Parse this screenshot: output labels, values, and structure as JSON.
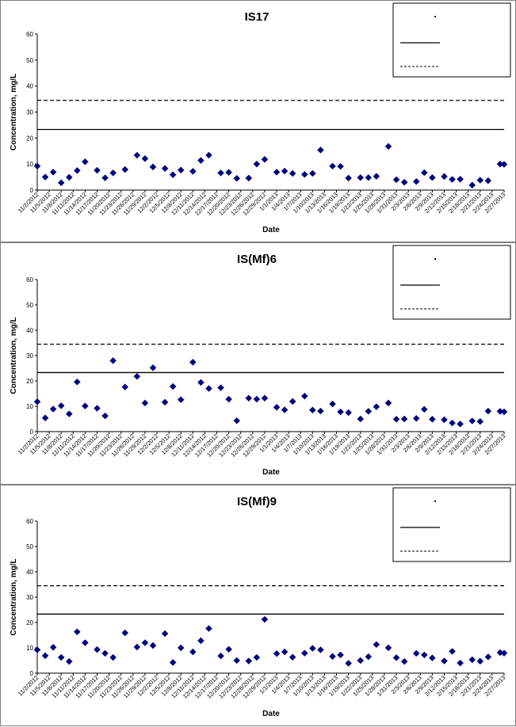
{
  "chart_data": [
    {
      "type": "scatter",
      "title": "IS17",
      "xlabel": "Date",
      "ylabel": "Concentration, mg/L",
      "ylim": [
        0,
        60
      ],
      "yticks": [
        0,
        10,
        20,
        30,
        40,
        50,
        60
      ],
      "xticks": [
        "11/2/2012",
        "11/5/2012",
        "11/8/2012",
        "11/11/2012",
        "11/14/2012",
        "11/17/2012",
        "11/20/2012",
        "11/23/2012",
        "11/26/2012",
        "11/29/2012",
        "12/2/2012",
        "12/5/2012",
        "12/8/2012",
        "12/11/2012",
        "12/14/2012",
        "12/17/2012",
        "12/20/2012",
        "12/23/2012",
        "12/26/2012",
        "12/29/2012",
        "1/1/2013",
        "1/4/2013",
        "1/7/2013",
        "1/10/2013",
        "1/13/2013",
        "1/16/2013",
        "1/19/2013",
        "1/22/2013",
        "1/25/2013",
        "1/28/2013",
        "1/31/2013",
        "2/3/2013",
        "2/6/2013",
        "2/9/2013",
        "2/12/2013",
        "2/15/2013",
        "2/18/2013",
        "2/21/2013",
        "2/24/2013",
        "2/27/2013"
      ],
      "xrange": [
        "11/2/2012",
        "2/27/2013"
      ],
      "reference_lines": [
        23.3,
        34.5
      ],
      "legend_position": "top-right",
      "series": [
        {
          "x": [
            "11/2/2012",
            "11/4/2012",
            "11/6/2012",
            "11/8/2012",
            "11/10/2012",
            "11/12/2012",
            "11/14/2012",
            "11/17/2012",
            "11/19/2012",
            "11/21/2012",
            "11/24/2012",
            "11/27/2012",
            "11/29/2012",
            "12/1/2012",
            "12/4/2012",
            "12/6/2012",
            "12/8/2012",
            "12/11/2012",
            "12/13/2012",
            "12/15/2012",
            "12/18/2012",
            "12/20/2012",
            "12/22/2012",
            "12/25/2012",
            "12/27/2012",
            "12/29/2012",
            "1/1/2013",
            "1/3/2013",
            "1/5/2013",
            "1/8/2013",
            "1/10/2013",
            "1/12/2013",
            "1/15/2013",
            "1/17/2013",
            "1/19/2013",
            "1/22/2013",
            "1/24/2013",
            "1/26/2013",
            "1/29/2013",
            "1/31/2013",
            "2/2/2013",
            "2/5/2013",
            "2/7/2013",
            "2/9/2013",
            "2/12/2013",
            "2/14/2013",
            "2/16/2013",
            "2/19/2013",
            "2/21/2013",
            "2/23/2013",
            "2/26/2013",
            "2/27/2013"
          ],
          "y": [
            9.2,
            5.0,
            6.9,
            2.8,
            4.9,
            7.5,
            10.9,
            7.6,
            4.7,
            6.6,
            7.9,
            13.4,
            12.1,
            8.9,
            8.3,
            5.9,
            7.7,
            7.2,
            11.4,
            13.4,
            6.6,
            6.8,
            4.5,
            4.6,
            10.0,
            11.8,
            6.9,
            7.3,
            6.4,
            6.0,
            6.4,
            15.4,
            9.2,
            9.1,
            4.6,
            4.8,
            4.8,
            5.3,
            16.8,
            4.0,
            3.0,
            3.3,
            6.7,
            4.8,
            5.2,
            4.1,
            4.2,
            1.9,
            3.8,
            3.6,
            10.0,
            9.9
          ]
        }
      ]
    },
    {
      "type": "scatter",
      "title": "IS(Mf)6",
      "xlabel": "Date",
      "ylabel": "Concentration, mg/L",
      "ylim": [
        0,
        60
      ],
      "yticks": [
        0,
        10,
        20,
        30,
        40,
        50,
        60
      ],
      "xticks": [
        "11/2/2012",
        "11/5/2012",
        "11/8/2012",
        "11/11/2012",
        "11/14/2012",
        "11/17/2012",
        "11/20/2012",
        "11/23/2012",
        "11/26/2012",
        "11/29/2012",
        "12/2/2012",
        "12/5/2012",
        "12/8/2012",
        "12/11/2012",
        "12/14/2012",
        "12/17/2012",
        "12/20/2012",
        "12/23/2012",
        "12/26/2012",
        "12/29/2012",
        "1/1/2013",
        "1/4/2013",
        "1/7/2013",
        "1/10/2013",
        "1/13/2013",
        "1/16/2013",
        "1/19/2013",
        "1/22/2013",
        "1/25/2013",
        "1/28/2013",
        "1/31/2013",
        "2/3/2013",
        "2/6/2013",
        "2/9/2013",
        "2/12/2013",
        "2/15/2013",
        "2/18/2013",
        "2/21/2013",
        "2/24/2013",
        "2/27/2013"
      ],
      "xrange": [
        "11/2/2012",
        "2/27/2013"
      ],
      "reference_lines": [
        23.3,
        34.5
      ],
      "legend_position": "top-right",
      "series": [
        {
          "x": [
            "11/2/2012",
            "11/4/2012",
            "11/6/2012",
            "11/8/2012",
            "11/10/2012",
            "11/12/2012",
            "11/14/2012",
            "11/17/2012",
            "11/19/2012",
            "11/21/2012",
            "11/24/2012",
            "11/27/2012",
            "11/29/2012",
            "12/1/2012",
            "12/4/2012",
            "12/6/2012",
            "12/8/2012",
            "12/11/2012",
            "12/13/2012",
            "12/15/2012",
            "12/18/2012",
            "12/20/2012",
            "12/22/2012",
            "12/25/2012",
            "12/27/2012",
            "12/29/2012",
            "1/1/2013",
            "1/3/2013",
            "1/5/2013",
            "1/8/2013",
            "1/10/2013",
            "1/12/2013",
            "1/15/2013",
            "1/17/2013",
            "1/19/2013",
            "1/22/2013",
            "1/24/2013",
            "1/26/2013",
            "1/29/2013",
            "1/31/2013",
            "2/2/2013",
            "2/5/2013",
            "2/7/2013",
            "2/9/2013",
            "2/12/2013",
            "2/14/2013",
            "2/16/2013",
            "2/19/2013",
            "2/21/2013",
            "2/23/2013",
            "2/26/2013",
            "2/27/2013"
          ],
          "y": [
            11.8,
            5.4,
            8.9,
            10.2,
            7.0,
            19.6,
            10.1,
            9.2,
            6.2,
            28.0,
            17.6,
            21.8,
            11.3,
            25.2,
            11.6,
            17.8,
            12.6,
            27.4,
            19.4,
            17.0,
            17.3,
            12.8,
            4.3,
            13.2,
            12.8,
            13.2,
            9.6,
            8.6,
            11.9,
            14.0,
            8.5,
            8.1,
            10.9,
            7.8,
            7.5,
            5.0,
            8.0,
            9.8,
            11.3,
            4.9,
            5.0,
            5.2,
            8.8,
            4.9,
            4.7,
            3.4,
            3.0,
            4.2,
            4.0,
            8.1,
            8.0,
            7.8
          ]
        }
      ]
    },
    {
      "type": "scatter",
      "title": "IS(Mf)9",
      "xlabel": "Date",
      "ylabel": "Concentration, mg/L",
      "ylim": [
        0,
        60
      ],
      "yticks": [
        0,
        10,
        20,
        30,
        40,
        50,
        60
      ],
      "xticks": [
        "11/2/2012",
        "11/5/2012",
        "11/8/2012",
        "11/11/2012",
        "11/14/2012",
        "11/17/2012",
        "11/20/2012",
        "11/23/2012",
        "11/26/2012",
        "11/29/2012",
        "12/2/2012",
        "12/5/2012",
        "12/8/2012",
        "12/11/2012",
        "12/14/2012",
        "12/17/2012",
        "12/20/2012",
        "12/23/2012",
        "12/26/2012",
        "12/29/2012",
        "1/1/2013",
        "1/4/2013",
        "1/7/2013",
        "1/10/2013",
        "1/13/2013",
        "1/16/2013",
        "1/19/2013",
        "1/22/2013",
        "1/25/2013",
        "1/28/2013",
        "1/31/2013",
        "2/3/2013",
        "2/6/2013",
        "2/9/2013",
        "2/12/2013",
        "2/15/2013",
        "2/18/2013",
        "2/21/2013",
        "2/24/2013",
        "2/27/2013"
      ],
      "xrange": [
        "11/2/2012",
        "2/27/2013"
      ],
      "reference_lines": [
        23.3,
        34.5
      ],
      "legend_position": "top-right",
      "series": [
        {
          "x": [
            "11/2/2012",
            "11/4/2012",
            "11/6/2012",
            "11/8/2012",
            "11/10/2012",
            "11/12/2012",
            "11/14/2012",
            "11/17/2012",
            "11/19/2012",
            "11/21/2012",
            "11/24/2012",
            "11/27/2012",
            "11/29/2012",
            "12/1/2012",
            "12/4/2012",
            "12/6/2012",
            "12/8/2012",
            "12/11/2012",
            "12/13/2012",
            "12/15/2012",
            "12/18/2012",
            "12/20/2012",
            "12/22/2012",
            "12/25/2012",
            "12/27/2012",
            "12/29/2012",
            "1/1/2013",
            "1/3/2013",
            "1/5/2013",
            "1/8/2013",
            "1/10/2013",
            "1/12/2013",
            "1/15/2013",
            "1/17/2013",
            "1/19/2013",
            "1/22/2013",
            "1/24/2013",
            "1/26/2013",
            "1/29/2013",
            "1/31/2013",
            "2/2/2013",
            "2/5/2013",
            "2/7/2013",
            "2/9/2013",
            "2/12/2013",
            "2/14/2013",
            "2/16/2013",
            "2/19/2013",
            "2/21/2013",
            "2/23/2013",
            "2/26/2013",
            "2/27/2013"
          ],
          "y": [
            9.2,
            6.9,
            10.2,
            6.2,
            4.6,
            16.3,
            12.0,
            9.3,
            7.8,
            6.2,
            15.9,
            10.3,
            12.0,
            10.9,
            15.6,
            4.2,
            10.0,
            8.4,
            12.8,
            17.6,
            6.8,
            9.4,
            5.0,
            4.8,
            6.2,
            21.2,
            7.7,
            8.4,
            6.3,
            7.9,
            9.8,
            9.2,
            6.6,
            7.2,
            3.9,
            5.0,
            6.5,
            11.3,
            10.0,
            6.1,
            4.6,
            7.8,
            7.2,
            6.0,
            4.8,
            8.6,
            4.0,
            5.3,
            4.7,
            6.4,
            8.1,
            7.9
          ]
        }
      ]
    }
  ]
}
